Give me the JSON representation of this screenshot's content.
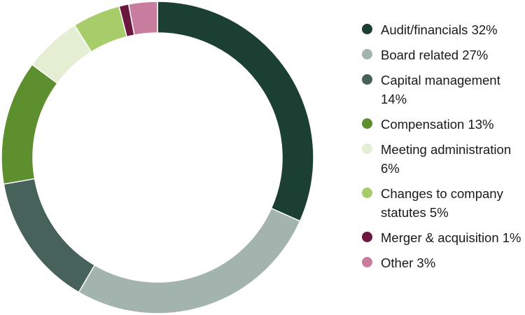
{
  "chart_data": {
    "type": "pie",
    "donut": true,
    "legend_position": "right",
    "slices": [
      {
        "label": "Audit/financials 32%",
        "value": 32,
        "color": "#1b3f33"
      },
      {
        "label": "Board related 27%",
        "value": 27,
        "color": "#a3b3ad"
      },
      {
        "label": "Capital management 14%",
        "value": 14,
        "color": "#46625a"
      },
      {
        "label": "Compensation 13%",
        "value": 13,
        "color": "#5e8f2f"
      },
      {
        "label": "Meeting administration 6%",
        "value": 6,
        "color": "#e4eed3"
      },
      {
        "label": "Changes to company statutes 5%",
        "value": 5,
        "color": "#a6cd69"
      },
      {
        "label": "Merger & acquisition 1%",
        "value": 1,
        "color": "#6b1740"
      },
      {
        "label": "Other 3%",
        "value": 3,
        "color": "#c87d9e"
      }
    ]
  }
}
